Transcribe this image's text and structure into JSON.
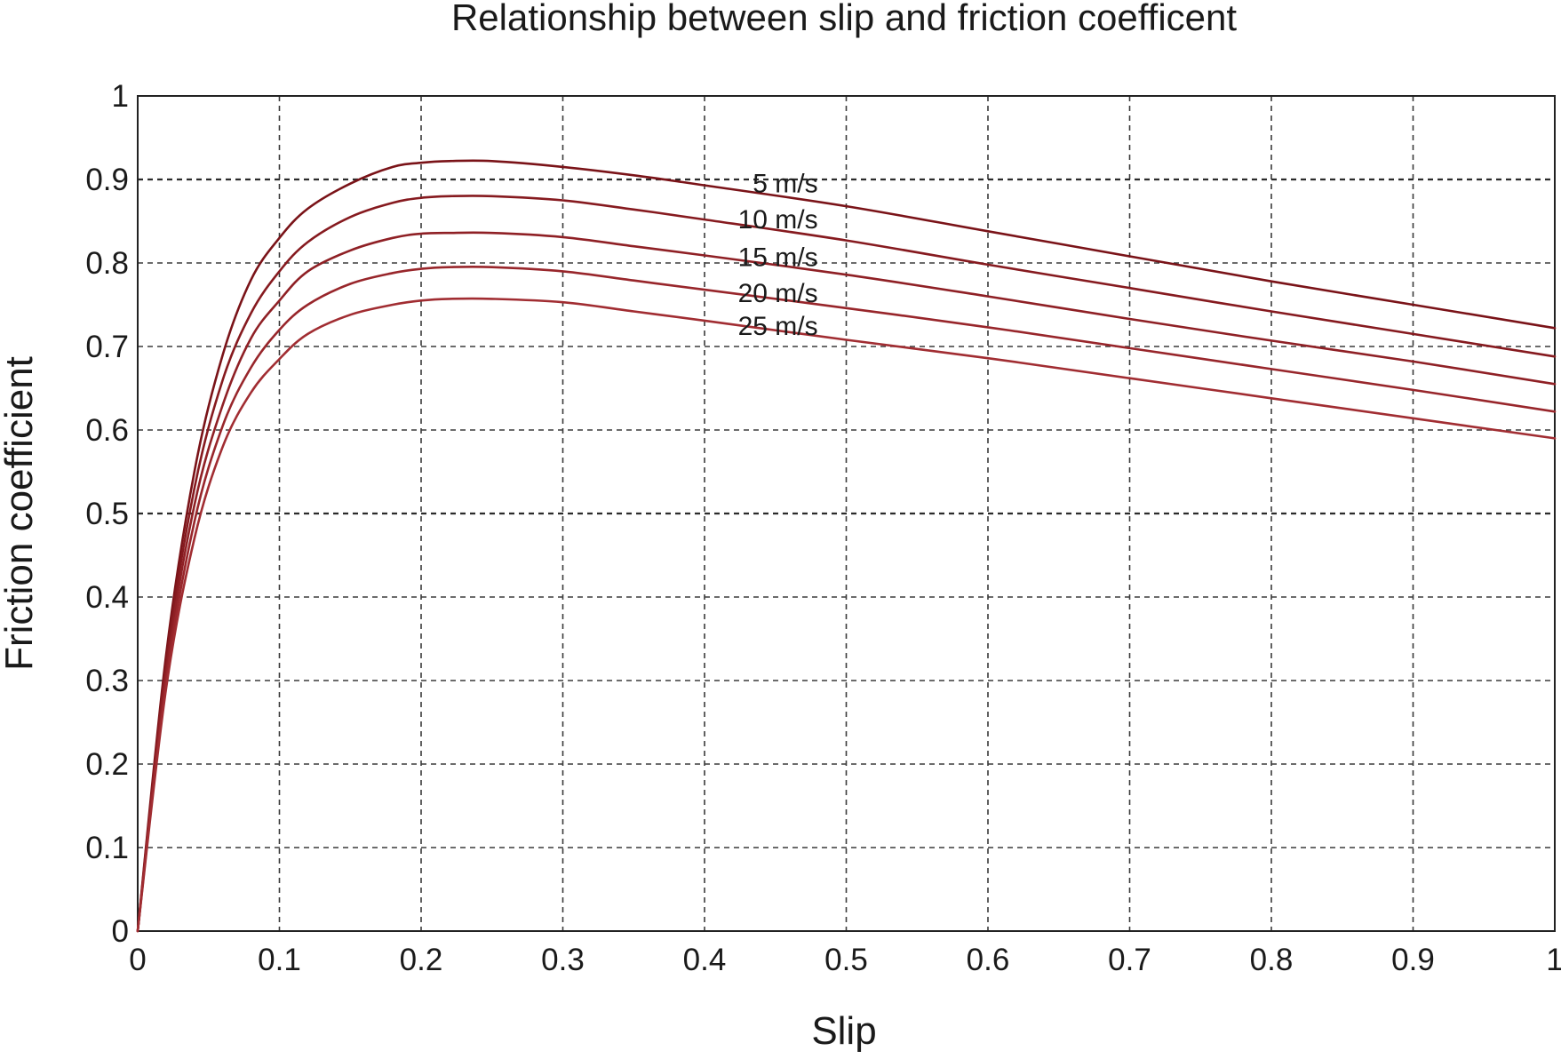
{
  "chart_data": {
    "type": "line",
    "title": "Relationship between slip and friction coefficent",
    "xlabel": "Slip",
    "ylabel": "Friction coefficient",
    "xlim": [
      0,
      1
    ],
    "ylim": [
      0,
      1
    ],
    "xticks": [
      "0",
      "0.1",
      "0.2",
      "0.3",
      "0.4",
      "0.5",
      "0.6",
      "0.7",
      "0.8",
      "0.9",
      "1"
    ],
    "yticks": [
      "0",
      "0.1",
      "0.2",
      "0.3",
      "0.4",
      "0.5",
      "0.6",
      "0.7",
      "0.8",
      "0.9",
      "1"
    ],
    "grid": true,
    "line_color": "#8b1a1a",
    "x": [
      0,
      0.02,
      0.04,
      0.06,
      0.08,
      0.1,
      0.12,
      0.15,
      0.18,
      0.2,
      0.22,
      0.25,
      0.3,
      0.35,
      0.4,
      0.5,
      0.6,
      0.7,
      0.8,
      0.9,
      1.0
    ],
    "series": [
      {
        "name": "5 m/s",
        "values": [
          0,
          0.33,
          0.55,
          0.69,
          0.78,
          0.83,
          0.865,
          0.895,
          0.915,
          0.92,
          0.922,
          0.922,
          0.915,
          0.905,
          0.893,
          0.868,
          0.838,
          0.808,
          0.778,
          0.75,
          0.722
        ]
      },
      {
        "name": "10 m/s",
        "values": [
          0,
          0.32,
          0.53,
          0.66,
          0.74,
          0.79,
          0.825,
          0.855,
          0.872,
          0.878,
          0.88,
          0.88,
          0.875,
          0.864,
          0.852,
          0.827,
          0.798,
          0.77,
          0.742,
          0.715,
          0.688
        ]
      },
      {
        "name": "15 m/s",
        "values": [
          0,
          0.31,
          0.51,
          0.63,
          0.71,
          0.755,
          0.79,
          0.815,
          0.83,
          0.835,
          0.836,
          0.836,
          0.831,
          0.82,
          0.809,
          0.786,
          0.76,
          0.733,
          0.707,
          0.682,
          0.655
        ]
      },
      {
        "name": "20 m/s",
        "values": [
          0,
          0.3,
          0.49,
          0.605,
          0.675,
          0.72,
          0.75,
          0.775,
          0.788,
          0.793,
          0.795,
          0.795,
          0.79,
          0.779,
          0.768,
          0.746,
          0.723,
          0.698,
          0.673,
          0.648,
          0.622
        ]
      },
      {
        "name": "25 m/s",
        "values": [
          0,
          0.29,
          0.47,
          0.58,
          0.645,
          0.685,
          0.715,
          0.738,
          0.75,
          0.755,
          0.757,
          0.757,
          0.753,
          0.742,
          0.731,
          0.708,
          0.686,
          0.662,
          0.638,
          0.614,
          0.59
        ]
      }
    ]
  }
}
